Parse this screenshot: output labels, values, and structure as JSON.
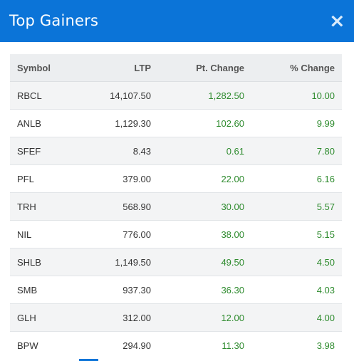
{
  "modal": {
    "title": "Top Gainers",
    "close_symbol": "×"
  },
  "table": {
    "columns": [
      "Symbol",
      "LTP",
      "Pt. Change",
      "% Change"
    ],
    "rows": [
      {
        "symbol": "RBCL",
        "ltp": "14,107.50",
        "pt_change": "1,282.50",
        "pct_change": "10.00"
      },
      {
        "symbol": "ANLB",
        "ltp": "1,129.30",
        "pt_change": "102.60",
        "pct_change": "9.99"
      },
      {
        "symbol": "SFEF",
        "ltp": "8.43",
        "pt_change": "0.61",
        "pct_change": "7.80"
      },
      {
        "symbol": "PFL",
        "ltp": "379.00",
        "pt_change": "22.00",
        "pct_change": "6.16"
      },
      {
        "symbol": "TRH",
        "ltp": "568.90",
        "pt_change": "30.00",
        "pct_change": "5.57"
      },
      {
        "symbol": "NIL",
        "ltp": "776.00",
        "pt_change": "38.00",
        "pct_change": "5.15"
      },
      {
        "symbol": "SHLB",
        "ltp": "1,149.50",
        "pt_change": "49.50",
        "pct_change": "4.50"
      },
      {
        "symbol": "SMB",
        "ltp": "937.30",
        "pt_change": "36.30",
        "pct_change": "4.03"
      },
      {
        "symbol": "GLH",
        "ltp": "312.00",
        "pt_change": "12.00",
        "pct_change": "4.00"
      },
      {
        "symbol": "BPW",
        "ltp": "294.90",
        "pt_change": "11.30",
        "pct_change": "3.98"
      }
    ]
  },
  "colors": {
    "header_bg": "#0b74d8",
    "gain_text": "#2e8b2e",
    "table_head_bg": "#eceef0",
    "row_stripe_bg": "#f3f4f5"
  }
}
